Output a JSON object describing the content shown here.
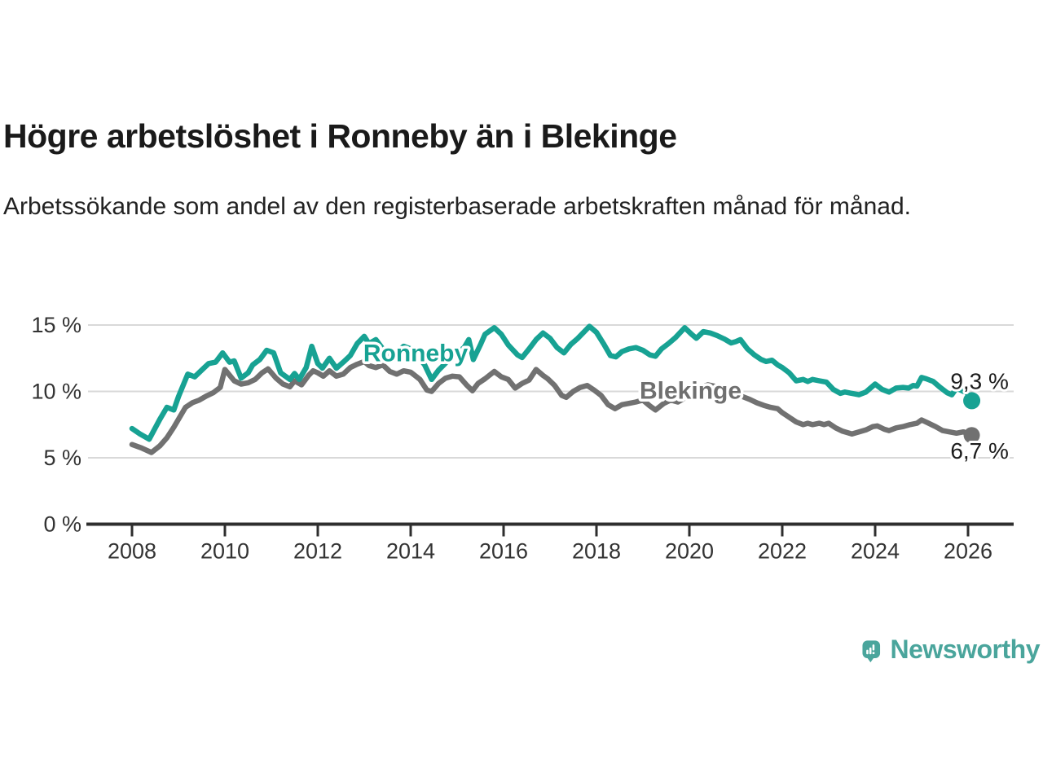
{
  "header": {
    "title": "Högre arbetslöshet i Ronneby än i Blekinge",
    "subtitle": "Arbetssökande som andel av den registerbaserade arbetskraften månad för månad."
  },
  "colors": {
    "ronneby_teal": "#17a293",
    "blekinge_gray": "#717171",
    "logo_teal": "#4aa59c",
    "grid_gray": "#d9d9d9",
    "axis_dark": "#2e2e2e",
    "label_text": "#1c1c1c",
    "axis_text": "#333333"
  },
  "footer": {
    "brand": "Newsworthy",
    "logo_icon": "speech-bubble-bar-chart-icon"
  },
  "chart_data": {
    "type": "line",
    "title": "Högre arbetslöshet i Ronneby än i Blekinge",
    "xlabel": "",
    "ylabel": "Arbetssökande som andel av den registerbaserade arbetskraften",
    "x_unit": "decimal_year",
    "xlim": [
      2007.1,
      2026.95
    ],
    "ylim": [
      0,
      15.5
    ],
    "grid": "horizontal",
    "yticks": [
      {
        "value": 0,
        "label": "0 %"
      },
      {
        "value": 5,
        "label": "5 %"
      },
      {
        "value": 10,
        "label": "10 %"
      },
      {
        "value": 15,
        "label": "15 %"
      }
    ],
    "xticks": [
      {
        "value": 2008,
        "label": "2008"
      },
      {
        "value": 2010,
        "label": "2010"
      },
      {
        "value": 2012,
        "label": "2012"
      },
      {
        "value": 2014,
        "label": "2014"
      },
      {
        "value": 2016,
        "label": "2016"
      },
      {
        "value": 2018,
        "label": "2018"
      },
      {
        "value": 2020,
        "label": "2020"
      },
      {
        "value": 2022,
        "label": "2022"
      },
      {
        "value": 2024,
        "label": "2024"
      },
      {
        "value": 2026,
        "label": "2026"
      }
    ],
    "series": [
      {
        "name": "Ronneby",
        "color": "#17a293",
        "end_label": "9,3 %",
        "end_dot": true,
        "points": [
          [
            2008.0,
            7.2
          ],
          [
            2008.17,
            6.8
          ],
          [
            2008.37,
            6.4
          ],
          [
            2008.6,
            7.9
          ],
          [
            2008.75,
            8.8
          ],
          [
            2008.9,
            8.6
          ],
          [
            2009.0,
            9.6
          ],
          [
            2009.2,
            11.3
          ],
          [
            2009.35,
            11.1
          ],
          [
            2009.5,
            11.6
          ],
          [
            2009.65,
            12.1
          ],
          [
            2009.8,
            12.2
          ],
          [
            2009.95,
            12.9
          ],
          [
            2010.1,
            12.2
          ],
          [
            2010.2,
            12.3
          ],
          [
            2010.35,
            11.0
          ],
          [
            2010.5,
            11.4
          ],
          [
            2010.6,
            12.0
          ],
          [
            2010.75,
            12.4
          ],
          [
            2010.9,
            13.1
          ],
          [
            2011.05,
            12.9
          ],
          [
            2011.2,
            11.4
          ],
          [
            2011.4,
            10.9
          ],
          [
            2011.5,
            11.35
          ],
          [
            2011.6,
            10.9
          ],
          [
            2011.75,
            11.8
          ],
          [
            2011.87,
            13.4
          ],
          [
            2012.0,
            12.1
          ],
          [
            2012.1,
            11.75
          ],
          [
            2012.25,
            12.5
          ],
          [
            2012.4,
            11.75
          ],
          [
            2012.55,
            12.2
          ],
          [
            2012.7,
            12.7
          ],
          [
            2012.85,
            13.6
          ],
          [
            2013.0,
            14.15
          ],
          [
            2013.1,
            13.6
          ],
          [
            2013.25,
            13.9
          ],
          [
            2013.4,
            13.2
          ],
          [
            2013.55,
            12.7
          ],
          [
            2013.7,
            13.0
          ],
          [
            2013.85,
            13.4
          ],
          [
            2014.0,
            13.2
          ],
          [
            2014.15,
            12.7
          ],
          [
            2014.3,
            12.0
          ],
          [
            2014.45,
            10.9
          ],
          [
            2014.6,
            11.6
          ],
          [
            2014.8,
            12.3
          ],
          [
            2015.0,
            12.9
          ],
          [
            2015.15,
            13.3
          ],
          [
            2015.25,
            13.9
          ],
          [
            2015.35,
            12.4
          ],
          [
            2015.5,
            13.5
          ],
          [
            2015.6,
            14.3
          ],
          [
            2015.8,
            14.8
          ],
          [
            2015.95,
            14.3
          ],
          [
            2016.1,
            13.5
          ],
          [
            2016.3,
            12.75
          ],
          [
            2016.4,
            12.55
          ],
          [
            2016.55,
            13.2
          ],
          [
            2016.7,
            13.9
          ],
          [
            2016.85,
            14.4
          ],
          [
            2017.0,
            14.0
          ],
          [
            2017.15,
            13.3
          ],
          [
            2017.3,
            12.9
          ],
          [
            2017.45,
            13.55
          ],
          [
            2017.6,
            14.0
          ],
          [
            2017.85,
            14.9
          ],
          [
            2018.0,
            14.45
          ],
          [
            2018.15,
            13.6
          ],
          [
            2018.3,
            12.7
          ],
          [
            2018.42,
            12.6
          ],
          [
            2018.55,
            13.0
          ],
          [
            2018.7,
            13.2
          ],
          [
            2018.85,
            13.3
          ],
          [
            2019.0,
            13.1
          ],
          [
            2019.15,
            12.75
          ],
          [
            2019.27,
            12.65
          ],
          [
            2019.4,
            13.2
          ],
          [
            2019.55,
            13.6
          ],
          [
            2019.7,
            14.05
          ],
          [
            2019.9,
            14.8
          ],
          [
            2020.05,
            14.3
          ],
          [
            2020.15,
            14.0
          ],
          [
            2020.3,
            14.5
          ],
          [
            2020.45,
            14.4
          ],
          [
            2020.6,
            14.2
          ],
          [
            2020.75,
            13.95
          ],
          [
            2020.9,
            13.65
          ],
          [
            2021.0,
            13.75
          ],
          [
            2021.1,
            13.9
          ],
          [
            2021.25,
            13.2
          ],
          [
            2021.4,
            12.75
          ],
          [
            2021.55,
            12.4
          ],
          [
            2021.65,
            12.25
          ],
          [
            2021.78,
            12.35
          ],
          [
            2021.9,
            12.0
          ],
          [
            2022.0,
            11.8
          ],
          [
            2022.15,
            11.4
          ],
          [
            2022.3,
            10.8
          ],
          [
            2022.45,
            10.9
          ],
          [
            2022.55,
            10.75
          ],
          [
            2022.65,
            10.9
          ],
          [
            2022.8,
            10.8
          ],
          [
            2022.95,
            10.7
          ],
          [
            2023.1,
            10.15
          ],
          [
            2023.25,
            9.85
          ],
          [
            2023.35,
            9.95
          ],
          [
            2023.5,
            9.85
          ],
          [
            2023.65,
            9.75
          ],
          [
            2023.8,
            9.95
          ],
          [
            2023.9,
            10.25
          ],
          [
            2024.0,
            10.55
          ],
          [
            2024.15,
            10.15
          ],
          [
            2024.3,
            9.95
          ],
          [
            2024.45,
            10.25
          ],
          [
            2024.6,
            10.3
          ],
          [
            2024.72,
            10.25
          ],
          [
            2024.82,
            10.45
          ],
          [
            2024.9,
            10.4
          ],
          [
            2025.0,
            11.05
          ],
          [
            2025.1,
            10.95
          ],
          [
            2025.25,
            10.75
          ],
          [
            2025.4,
            10.3
          ],
          [
            2025.55,
            9.9
          ],
          [
            2025.65,
            9.75
          ],
          [
            2025.75,
            10.25
          ],
          [
            2025.9,
            10.0
          ],
          [
            2026.08,
            9.3
          ]
        ]
      },
      {
        "name": "Blekinge",
        "color": "#717171",
        "end_label": "6,7 %",
        "end_dot": true,
        "points": [
          [
            2008.0,
            6.0
          ],
          [
            2008.2,
            5.75
          ],
          [
            2008.42,
            5.4
          ],
          [
            2008.6,
            5.9
          ],
          [
            2008.75,
            6.5
          ],
          [
            2008.9,
            7.3
          ],
          [
            2009.0,
            7.9
          ],
          [
            2009.15,
            8.8
          ],
          [
            2009.3,
            9.15
          ],
          [
            2009.45,
            9.35
          ],
          [
            2009.6,
            9.65
          ],
          [
            2009.75,
            9.9
          ],
          [
            2009.9,
            10.3
          ],
          [
            2010.0,
            11.65
          ],
          [
            2010.2,
            10.8
          ],
          [
            2010.35,
            10.55
          ],
          [
            2010.5,
            10.65
          ],
          [
            2010.65,
            10.9
          ],
          [
            2010.8,
            11.4
          ],
          [
            2010.93,
            11.7
          ],
          [
            2011.1,
            11.0
          ],
          [
            2011.25,
            10.55
          ],
          [
            2011.4,
            10.35
          ],
          [
            2011.5,
            10.8
          ],
          [
            2011.65,
            10.5
          ],
          [
            2011.8,
            11.2
          ],
          [
            2011.9,
            11.55
          ],
          [
            2012.0,
            11.4
          ],
          [
            2012.12,
            11.15
          ],
          [
            2012.25,
            11.55
          ],
          [
            2012.4,
            11.15
          ],
          [
            2012.55,
            11.3
          ],
          [
            2012.7,
            11.8
          ],
          [
            2012.85,
            12.05
          ],
          [
            2013.0,
            12.25
          ],
          [
            2013.1,
            11.95
          ],
          [
            2013.25,
            11.8
          ],
          [
            2013.4,
            12.0
          ],
          [
            2013.55,
            11.5
          ],
          [
            2013.7,
            11.3
          ],
          [
            2013.85,
            11.55
          ],
          [
            2014.0,
            11.45
          ],
          [
            2014.2,
            10.9
          ],
          [
            2014.35,
            10.1
          ],
          [
            2014.45,
            10.0
          ],
          [
            2014.6,
            10.6
          ],
          [
            2014.75,
            11.0
          ],
          [
            2014.9,
            11.15
          ],
          [
            2015.05,
            11.1
          ],
          [
            2015.2,
            10.5
          ],
          [
            2015.33,
            10.05
          ],
          [
            2015.45,
            10.6
          ],
          [
            2015.6,
            10.95
          ],
          [
            2015.8,
            11.5
          ],
          [
            2015.95,
            11.1
          ],
          [
            2016.1,
            10.9
          ],
          [
            2016.25,
            10.25
          ],
          [
            2016.4,
            10.6
          ],
          [
            2016.55,
            10.85
          ],
          [
            2016.7,
            11.65
          ],
          [
            2016.85,
            11.2
          ],
          [
            2016.95,
            10.95
          ],
          [
            2017.1,
            10.45
          ],
          [
            2017.25,
            9.7
          ],
          [
            2017.35,
            9.55
          ],
          [
            2017.5,
            10.0
          ],
          [
            2017.65,
            10.3
          ],
          [
            2017.8,
            10.45
          ],
          [
            2017.95,
            10.1
          ],
          [
            2018.1,
            9.7
          ],
          [
            2018.25,
            9.0
          ],
          [
            2018.4,
            8.7
          ],
          [
            2018.55,
            9.0
          ],
          [
            2018.7,
            9.1
          ],
          [
            2018.85,
            9.2
          ],
          [
            2019.0,
            9.35
          ],
          [
            2019.15,
            8.9
          ],
          [
            2019.27,
            8.6
          ],
          [
            2019.45,
            9.1
          ],
          [
            2019.6,
            9.35
          ],
          [
            2019.75,
            9.2
          ],
          [
            2019.9,
            9.5
          ],
          [
            2020.05,
            9.7
          ],
          [
            2020.2,
            10.2
          ],
          [
            2020.4,
            10.5
          ],
          [
            2020.6,
            10.35
          ],
          [
            2020.8,
            10.1
          ],
          [
            2021.0,
            9.85
          ],
          [
            2021.15,
            9.6
          ],
          [
            2021.3,
            9.4
          ],
          [
            2021.45,
            9.15
          ],
          [
            2021.6,
            8.95
          ],
          [
            2021.75,
            8.8
          ],
          [
            2021.9,
            8.7
          ],
          [
            2022.0,
            8.4
          ],
          [
            2022.15,
            8.05
          ],
          [
            2022.3,
            7.7
          ],
          [
            2022.45,
            7.5
          ],
          [
            2022.55,
            7.6
          ],
          [
            2022.65,
            7.5
          ],
          [
            2022.8,
            7.6
          ],
          [
            2022.9,
            7.5
          ],
          [
            2023.0,
            7.6
          ],
          [
            2023.15,
            7.25
          ],
          [
            2023.3,
            7.0
          ],
          [
            2023.5,
            6.8
          ],
          [
            2023.65,
            6.95
          ],
          [
            2023.8,
            7.1
          ],
          [
            2023.95,
            7.35
          ],
          [
            2024.05,
            7.4
          ],
          [
            2024.2,
            7.15
          ],
          [
            2024.3,
            7.05
          ],
          [
            2024.45,
            7.25
          ],
          [
            2024.6,
            7.35
          ],
          [
            2024.75,
            7.5
          ],
          [
            2024.9,
            7.6
          ],
          [
            2025.0,
            7.85
          ],
          [
            2025.15,
            7.6
          ],
          [
            2025.3,
            7.35
          ],
          [
            2025.45,
            7.05
          ],
          [
            2025.6,
            6.95
          ],
          [
            2025.75,
            6.85
          ],
          [
            2025.9,
            6.95
          ],
          [
            2026.08,
            6.7
          ]
        ]
      }
    ],
    "series_labels": [
      {
        "text": "Ronneby",
        "year": 2012.98,
        "value": 12.28,
        "color": "#17a293"
      },
      {
        "text": "Blekinge",
        "year": 2018.93,
        "value": 9.45,
        "color": "#6f6f6f"
      }
    ],
    "end_value_labels": [
      {
        "text": "9,3 %",
        "year": 2025.62,
        "value": 10.18
      },
      {
        "text": "6,7 %",
        "year": 2025.62,
        "value": 4.95
      }
    ],
    "legend": "inline-labels"
  }
}
